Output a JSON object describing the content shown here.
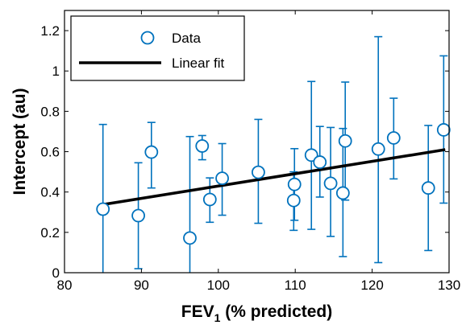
{
  "chart_data": {
    "type": "scatter",
    "title": "",
    "xlabel": {
      "main": "FEV",
      "sub": "1",
      "rest": " (% predicted)"
    },
    "ylabel": "Intercept (au)",
    "xlim": [
      80,
      130
    ],
    "ylim": [
      0,
      1.3
    ],
    "x_ticks": [
      80,
      90,
      100,
      110,
      120,
      130
    ],
    "y_ticks": [
      0,
      0.2,
      0.4,
      0.6,
      0.8,
      1,
      1.2
    ],
    "x_tick_labels": [
      "80",
      "90",
      "100",
      "110",
      "120",
      "130"
    ],
    "y_tick_labels": [
      "0",
      "0.2",
      "0.4",
      "0.6",
      "0.8",
      "1",
      "1.2"
    ],
    "grid": false,
    "legend_position": "top-left",
    "series": [
      {
        "name": "Data",
        "kind": "scatter-errorbar",
        "color": "#0072BD",
        "points": [
          {
            "x": 85.0,
            "y": 0.315,
            "ylow": 0.0,
            "yhigh": 0.735
          },
          {
            "x": 89.6,
            "y": 0.283,
            "ylow": 0.02,
            "yhigh": 0.545
          },
          {
            "x": 91.3,
            "y": 0.598,
            "ylow": 0.42,
            "yhigh": 0.745
          },
          {
            "x": 96.3,
            "y": 0.172,
            "ylow": 0.0,
            "yhigh": 0.675
          },
          {
            "x": 97.9,
            "y": 0.628,
            "ylow": 0.56,
            "yhigh": 0.68
          },
          {
            "x": 98.9,
            "y": 0.363,
            "ylow": 0.25,
            "yhigh": 0.47
          },
          {
            "x": 100.5,
            "y": 0.468,
            "ylow": 0.285,
            "yhigh": 0.64
          },
          {
            "x": 105.2,
            "y": 0.498,
            "ylow": 0.245,
            "yhigh": 0.76
          },
          {
            "x": 109.9,
            "y": 0.438,
            "ylow": 0.26,
            "yhigh": 0.615
          },
          {
            "x": 109.8,
            "y": 0.358,
            "ylow": 0.21,
            "yhigh": 0.5
          },
          {
            "x": 112.1,
            "y": 0.583,
            "ylow": 0.215,
            "yhigh": 0.948
          },
          {
            "x": 113.2,
            "y": 0.548,
            "ylow": 0.375,
            "yhigh": 0.725
          },
          {
            "x": 114.6,
            "y": 0.443,
            "ylow": 0.18,
            "yhigh": 0.72
          },
          {
            "x": 116.2,
            "y": 0.395,
            "ylow": 0.08,
            "yhigh": 0.715
          },
          {
            "x": 116.5,
            "y": 0.653,
            "ylow": 0.36,
            "yhigh": 0.945
          },
          {
            "x": 120.8,
            "y": 0.613,
            "ylow": 0.05,
            "yhigh": 1.17
          },
          {
            "x": 122.8,
            "y": 0.668,
            "ylow": 0.465,
            "yhigh": 0.865
          },
          {
            "x": 127.3,
            "y": 0.42,
            "ylow": 0.11,
            "yhigh": 0.73
          },
          {
            "x": 129.3,
            "y": 0.708,
            "ylow": 0.345,
            "yhigh": 1.075
          }
        ]
      },
      {
        "name": "Linear fit",
        "kind": "line",
        "color": "#000000",
        "points": [
          {
            "x": 85.0,
            "y": 0.338
          },
          {
            "x": 129.5,
            "y": 0.61
          }
        ]
      }
    ]
  }
}
